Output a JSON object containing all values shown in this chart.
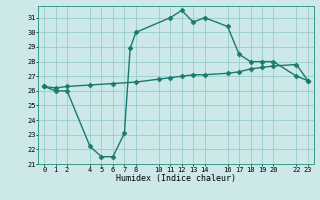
{
  "title": "",
  "xlabel": "Humidex (Indice chaleur)",
  "bg_color": "#cce8e8",
  "grid_color": "#99cccc",
  "line_color": "#1a7a6e",
  "xlim": [
    -0.5,
    23.5
  ],
  "ylim": [
    21,
    31.8
  ],
  "xticks": [
    0,
    1,
    2,
    4,
    5,
    6,
    7,
    8,
    10,
    11,
    12,
    13,
    14,
    16,
    17,
    18,
    19,
    20,
    22,
    23
  ],
  "yticks": [
    21,
    22,
    23,
    24,
    25,
    26,
    27,
    28,
    29,
    30,
    31
  ],
  "line1_x": [
    0,
    1,
    2,
    4,
    5,
    6,
    7,
    7.5,
    8,
    11,
    12,
    13,
    14,
    16,
    17,
    18,
    19,
    20,
    22,
    23
  ],
  "line1_y": [
    26.3,
    26.0,
    26.0,
    22.2,
    21.5,
    21.5,
    23.1,
    28.9,
    30.0,
    31.0,
    31.5,
    30.7,
    31.0,
    30.4,
    28.5,
    28.0,
    28.0,
    28.0,
    27.0,
    26.7
  ],
  "line2_x": [
    0,
    1,
    2,
    4,
    6,
    8,
    10,
    11,
    12,
    13,
    14,
    16,
    17,
    18,
    19,
    20,
    22,
    23
  ],
  "line2_y": [
    26.3,
    26.2,
    26.3,
    26.4,
    26.5,
    26.6,
    26.8,
    26.9,
    27.0,
    27.1,
    27.1,
    27.2,
    27.3,
    27.5,
    27.6,
    27.7,
    27.8,
    26.7
  ],
  "marker": "D",
  "markersize": 2.5,
  "linewidth": 1.0
}
